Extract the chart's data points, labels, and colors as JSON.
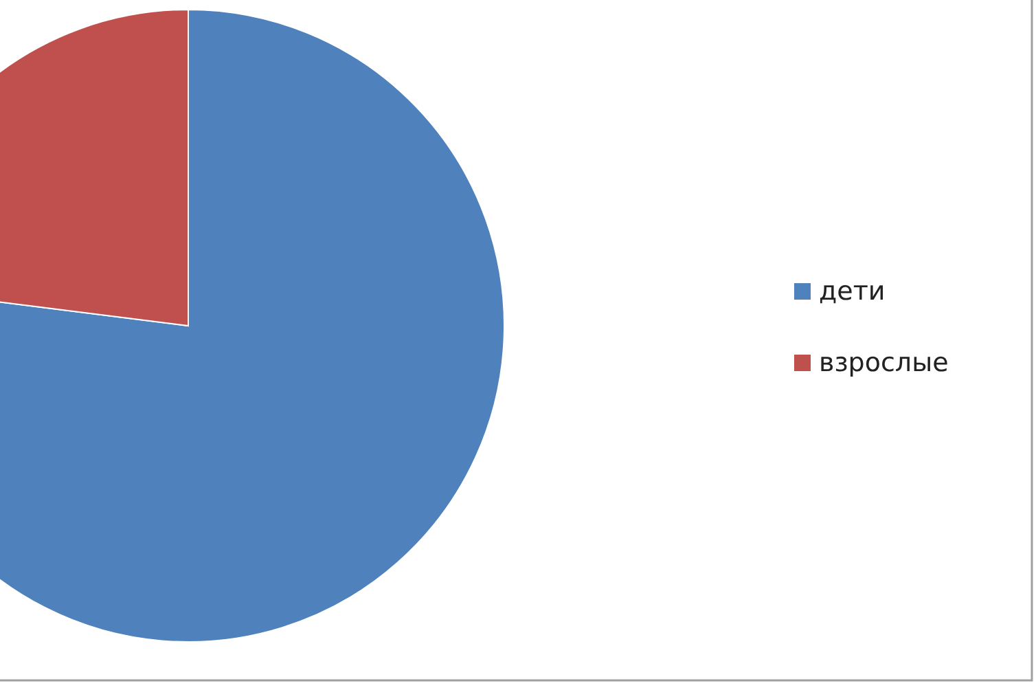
{
  "chart_data": {
    "type": "pie",
    "categories": [
      "дети",
      "взрослые"
    ],
    "values": [
      77,
      23
    ],
    "colors": [
      "#4f81bd",
      "#c0504d"
    ],
    "legend": "right"
  }
}
